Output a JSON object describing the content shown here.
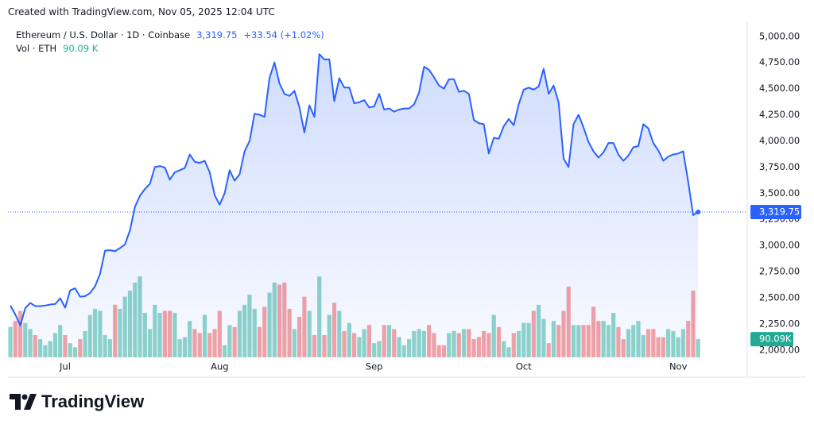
{
  "credit": "Created with TradingView.com, Nov 05, 2025 12:04 UTC",
  "logo": "TradingView",
  "header": {
    "symbol": "Ethereum / U.S. Dollar · 1D · Coinbase",
    "price": "3,319.75",
    "change": "+33.54 (+1.02%)",
    "vol_label": "Vol · ETH",
    "vol": "90.09 K"
  },
  "chart_data": {
    "type": "line",
    "categories": [
      null,
      null,
      null,
      null,
      null,
      null,
      null,
      null,
      null,
      null,
      null,
      "Jul",
      null,
      null,
      null,
      null,
      null,
      null,
      null,
      null,
      null,
      null,
      null,
      null,
      null,
      null,
      null,
      null,
      null,
      null,
      null,
      null,
      null,
      null,
      null,
      null,
      null,
      null,
      null,
      null,
      null,
      null,
      "Aug",
      null,
      null,
      null,
      null,
      null,
      null,
      null,
      null,
      null,
      null,
      null,
      null,
      null,
      null,
      null,
      null,
      null,
      null,
      null,
      null,
      null,
      null,
      null,
      null,
      null,
      null,
      null,
      null,
      null,
      null,
      "Sep",
      null,
      null,
      null,
      null,
      null,
      null,
      null,
      null,
      null,
      null,
      null,
      null,
      null,
      null,
      null,
      null,
      null,
      null,
      null,
      null,
      null,
      null,
      null,
      null,
      null,
      null,
      null,
      null,
      null,
      "Oct",
      null,
      null,
      null,
      null,
      null,
      null,
      null,
      null,
      null,
      null,
      null,
      null,
      null,
      null,
      null,
      null,
      null,
      null,
      null,
      null,
      null,
      null,
      null,
      null,
      null,
      null,
      null,
      null,
      null,
      null,
      "Nov",
      null,
      null,
      null,
      null
    ],
    "series": [
      {
        "name": "Ethereum / U.S. Dollar",
        "color": "#2962ff",
        "last_label": "3,319.75",
        "values": [
          2425,
          2340,
          2235,
          2400,
          2450,
          2420,
          2420,
          2425,
          2435,
          2440,
          2495,
          2405,
          2570,
          2590,
          2510,
          2515,
          2545,
          2610,
          2730,
          2950,
          2955,
          2945,
          2975,
          3010,
          3145,
          3370,
          3475,
          3540,
          3590,
          3750,
          3760,
          3745,
          3630,
          3700,
          3720,
          3740,
          3870,
          3800,
          3790,
          3810,
          3700,
          3480,
          3390,
          3500,
          3720,
          3620,
          3680,
          3900,
          4000,
          4260,
          4250,
          4230,
          4600,
          4750,
          4550,
          4450,
          4430,
          4480,
          4320,
          4080,
          4340,
          4230,
          4830,
          4780,
          4780,
          4380,
          4600,
          4510,
          4510,
          4360,
          4370,
          4390,
          4320,
          4330,
          4450,
          4300,
          4310,
          4280,
          4300,
          4310,
          4310,
          4350,
          4460,
          4710,
          4680,
          4610,
          4530,
          4500,
          4590,
          4590,
          4470,
          4480,
          4450,
          4200,
          4170,
          4160,
          3880,
          4030,
          4020,
          4140,
          4210,
          4150,
          4350,
          4490,
          4510,
          4490,
          4520,
          4690,
          4450,
          4530,
          4370,
          3830,
          3750,
          4160,
          4250,
          4130,
          3990,
          3900,
          3840,
          3890,
          3980,
          3980,
          3870,
          3810,
          3860,
          3940,
          3950,
          4160,
          4120,
          3980,
          3910,
          3810,
          3850,
          3870,
          3880,
          3900,
          3610,
          3290,
          3319.75
        ]
      },
      {
        "name": "Vol · ETH",
        "axis": "y2",
        "up_color": "#8fd5c9",
        "down_color": "#f5a3a3",
        "tag_color": "#22ab94",
        "last_label": "90.09K",
        "values": [
          150,
          180,
          230,
          170,
          140,
          110,
          90,
          60,
          80,
          120,
          160,
          110,
          70,
          50,
          90,
          130,
          210,
          240,
          230,
          110,
          90,
          260,
          240,
          300,
          330,
          370,
          400,
          220,
          140,
          260,
          220,
          230,
          230,
          220,
          90,
          100,
          180,
          140,
          120,
          210,
          120,
          140,
          230,
          60,
          160,
          150,
          230,
          260,
          310,
          240,
          150,
          250,
          320,
          370,
          360,
          370,
          240,
          140,
          200,
          300,
          230,
          110,
          400,
          110,
          210,
          270,
          230,
          130,
          170,
          120,
          100,
          140,
          160,
          70,
          80,
          160,
          160,
          140,
          100,
          60,
          90,
          130,
          140,
          130,
          160,
          120,
          60,
          60,
          120,
          130,
          120,
          140,
          140,
          90,
          100,
          130,
          120,
          210,
          150,
          80,
          50,
          120,
          130,
          170,
          170,
          230,
          260,
          190,
          70,
          180,
          160,
          230,
          350,
          160,
          160,
          160,
          160,
          250,
          180,
          180,
          160,
          220,
          150,
          90,
          140,
          160,
          180,
          110,
          140,
          140,
          100,
          100,
          140,
          130,
          100,
          140,
          180,
          330,
          90.09
        ]
      }
    ],
    "ylim": [
      1930,
      5120
    ],
    "y2lim": [
      0,
      1650
    ],
    "yticks": [
      {
        "value": 2000,
        "label": "2,000.00"
      },
      {
        "value": 2250,
        "label": "2,250.00"
      },
      {
        "value": 2500,
        "label": "2,500.00"
      },
      {
        "value": 2750,
        "label": "2,750.00"
      },
      {
        "value": 3000,
        "label": "3,000.00"
      },
      {
        "value": 3250,
        "label": "3,250.00"
      },
      {
        "value": 3500,
        "label": "3,500.00"
      },
      {
        "value": 3750,
        "label": "3,750.00"
      },
      {
        "value": 4000,
        "label": "4,000.00"
      },
      {
        "value": 4250,
        "label": "4,250.00"
      },
      {
        "value": 4500,
        "label": "4,500.00"
      },
      {
        "value": 4750,
        "label": "4,750.00"
      },
      {
        "value": 5000,
        "label": "5,000.00"
      }
    ],
    "grid": false
  }
}
